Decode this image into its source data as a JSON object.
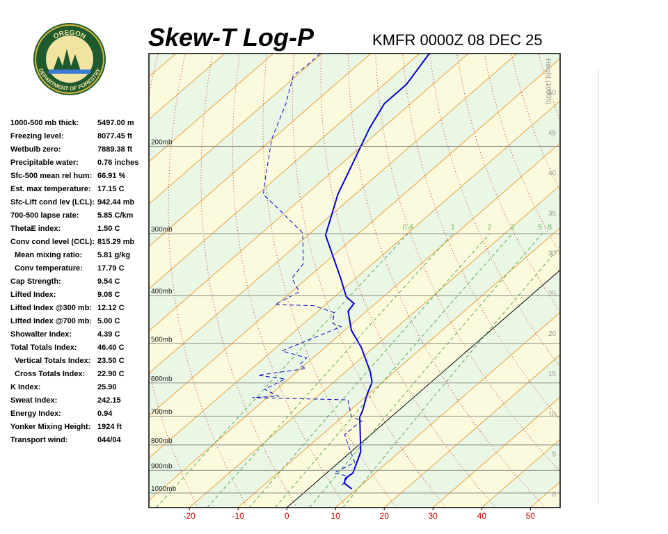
{
  "logo": {
    "top": "OREGON",
    "bottom": "DEPARTMENT OF FORESTRY"
  },
  "stats": [
    {
      "label": "1000-500 mb thick:",
      "value": "5497.00 m"
    },
    {
      "label": "Freezing level:",
      "value": "8077.45 ft"
    },
    {
      "label": "Wetbulb zero:",
      "value": "7889.38 ft"
    },
    {
      "label": "Precipitable water:",
      "value": "0.76 inches"
    },
    {
      "label": "Sfc-500 mean rel hum:",
      "value": "66.91 %"
    },
    {
      "label": "Est. max temperature:",
      "value": "17.15 C"
    },
    {
      "label": "Sfc-Lift cond lev (LCL):",
      "value": "942.44 mb"
    },
    {
      "label": "700-500 lapse rate:",
      "value": "5.85 C/km"
    },
    {
      "label": "ThetaE index:",
      "value": "1.50 C"
    },
    {
      "label": "Conv cond level (CCL):",
      "value": "815.29 mb"
    },
    {
      "label": "Mean mixing ratio:",
      "value": "5.81 g/kg",
      "indent": true
    },
    {
      "label": "Conv temperature:",
      "value": "17.79 C",
      "indent": true
    },
    {
      "label": "Cap Strength:",
      "value": "9.54 C"
    },
    {
      "label": "Lifted Index:",
      "value": "9.08 C"
    },
    {
      "label": "Lifted Index @300 mb:",
      "value": "12.12 C"
    },
    {
      "label": "Lifted Index @700 mb:",
      "value": "5.00 C"
    },
    {
      "label": "Showalter Index:",
      "value": "4.39 C"
    },
    {
      "label": "Total Totals Index:",
      "value": "46.40 C"
    },
    {
      "label": "Vertical Totals Index:",
      "value": "23.50 C",
      "indent": true
    },
    {
      "label": "Cross Totals Index:",
      "value": "22.90 C",
      "indent": true
    },
    {
      "label": "K Index:",
      "value": "25.90"
    },
    {
      "label": "Sweat Index:",
      "value": "242.15"
    },
    {
      "label": "Energy Index:",
      "value": "0.94"
    },
    {
      "label": "Yonker Mixing Height:",
      "value": "1924 ft"
    },
    {
      "label": "Transport wind:",
      "value": "044/04"
    }
  ],
  "chart_data": {
    "type": "skew-t",
    "title": "Skew-T Log-P",
    "subtitle": "KMFR 0000Z 08 DEC 25",
    "height_label": "Height (1000ft)",
    "xlim": [
      -28.3,
      56.1
    ],
    "xticks": [
      -20,
      -10,
      0,
      10,
      20,
      30,
      40,
      50
    ],
    "plim": [
      1070,
      130
    ],
    "pticks": [
      {
        "value": 1000,
        "label": "1000mb"
      },
      {
        "value": 900,
        "label": "900mb"
      },
      {
        "value": 800,
        "label": "800mb"
      },
      {
        "value": 700,
        "label": "700mb"
      },
      {
        "value": 600,
        "label": "600mb"
      },
      {
        "value": 500,
        "label": "500mb"
      },
      {
        "value": 400,
        "label": "400mb"
      },
      {
        "value": 300,
        "label": "300mb"
      },
      {
        "value": 200,
        "label": "200mb"
      }
    ],
    "hlim": [
      -1.7,
      54.8
    ],
    "hticks": [
      0,
      5,
      10,
      15,
      20,
      25,
      30,
      35,
      40,
      45,
      50
    ],
    "mixing_ratio_lines": [
      0.4,
      1,
      2,
      3,
      5,
      8
    ],
    "series": [
      {
        "color": "#0000cc",
        "dashed": false,
        "pressure": [
          130,
          150,
          164,
          184,
          250,
          302,
          369,
          402,
          415,
          430,
          470,
          509,
          570,
          598,
          628,
          649,
          681,
          703,
          826,
          911,
          934,
          956,
          981
        ],
        "values": [
          -78.0,
          -75.4,
          -75.4,
          -72.6,
          -63.5,
          -56.4,
          -43.1,
          -37.6,
          -34.4,
          -33.8,
          -28.6,
          -22.5,
          -14.9,
          -12.1,
          -10.5,
          -9.3,
          -7.4,
          -6.4,
          2.0,
          5.4,
          5.1,
          6.1,
          8.9
        ]
      },
      {
        "color": "#0000cc",
        "dashed": true,
        "pressure": [
          130,
          138,
          144,
          164,
          193,
          234,
          250,
          267,
          299,
          345,
          369,
          393,
          417,
          419,
          433,
          455,
          462,
          517,
          534,
          552,
          561,
          579,
          589,
          618,
          638,
          642,
          649,
          703,
          715,
          762,
          800,
          868,
          911,
          925,
          971
        ],
        "values": [
          -100.4,
          -100.3,
          -100.7,
          -95.6,
          -90.2,
          -81.8,
          -78.8,
          -72.4,
          -61.6,
          -54.2,
          -53.1,
          -48.4,
          -50.4,
          -42.2,
          -36.3,
          -34.1,
          -31.6,
          -38.0,
          -31.3,
          -31.1,
          -28.9,
          -37.2,
          -30.7,
          -32.5,
          -28.0,
          -33.1,
          -12.9,
          -8.1,
          -5.1,
          -5.4,
          -2.2,
          3.3,
          1.5,
          5.2,
          6.2
        ]
      }
    ]
  }
}
